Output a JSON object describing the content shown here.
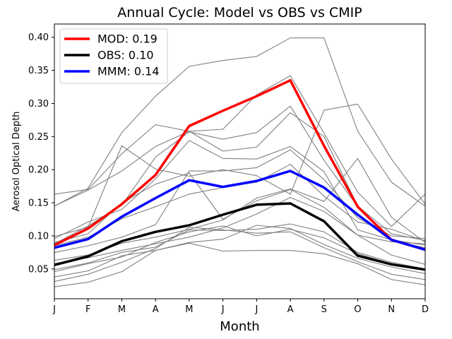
{
  "chart_data": {
    "type": "line",
    "title": "Annual Cycle: Model vs OBS vs CMIP",
    "xlabel": "Month",
    "ylabel": "Aerosol Optical Depth",
    "categories": [
      "J",
      "F",
      "M",
      "A",
      "M",
      "J",
      "J",
      "A",
      "S",
      "O",
      "N",
      "D"
    ],
    "ylim": [
      0.005,
      0.42
    ],
    "yticks": [
      0.05,
      0.1,
      0.15,
      0.2,
      0.25,
      0.3,
      0.35,
      0.4
    ],
    "ytick_labels": [
      "0.05",
      "0.10",
      "0.15",
      "0.20",
      "0.25",
      "0.30",
      "0.35",
      "0.40"
    ],
    "grid": false,
    "legend_position": "top-left",
    "series": [
      {
        "name": "MOD: 0.19",
        "color": "#ff0000",
        "values": [
          0.086,
          0.111,
          0.148,
          0.192,
          0.266,
          0.289,
          0.311,
          0.335,
          0.236,
          0.144,
          0.094,
          0.079
        ]
      },
      {
        "name": "OBS: 0.10",
        "color": "#000000",
        "values": [
          0.056,
          0.069,
          0.092,
          0.106,
          0.116,
          0.132,
          0.147,
          0.149,
          0.122,
          0.07,
          0.057,
          0.049
        ]
      },
      {
        "name": "MMM: 0.14",
        "color": "#0000ff",
        "values": [
          0.082,
          0.095,
          0.129,
          0.157,
          0.184,
          0.174,
          0.183,
          0.198,
          0.173,
          0.132,
          0.094,
          0.079
        ]
      }
    ],
    "cmip_models": [
      {
        "color": "#808080",
        "values": [
          0.145,
          0.172,
          0.256,
          0.311,
          0.356,
          0.365,
          0.371,
          0.399,
          0.399,
          0.258,
          0.181,
          0.145
        ]
      },
      {
        "color": "#808080",
        "values": [
          0.163,
          0.17,
          0.224,
          0.268,
          0.258,
          0.261,
          0.313,
          0.342,
          0.255,
          0.166,
          0.114,
          0.163
        ]
      },
      {
        "color": "#808080",
        "values": [
          0.145,
          0.169,
          0.198,
          0.235,
          0.258,
          0.228,
          0.234,
          0.286,
          0.25,
          0.145,
          0.103,
          0.093
        ]
      },
      {
        "color": "#808080",
        "values": [
          0.099,
          0.113,
          0.236,
          0.201,
          0.19,
          0.2,
          0.191,
          0.163,
          0.29,
          0.299,
          0.216,
          0.148
        ]
      },
      {
        "color": "#808080",
        "values": [
          0.088,
          0.115,
          0.146,
          0.219,
          0.257,
          0.246,
          0.256,
          0.296,
          0.214,
          0.144,
          0.093,
          0.082
        ]
      },
      {
        "color": "#808080",
        "values": [
          0.096,
          0.121,
          0.14,
          0.186,
          0.244,
          0.217,
          0.216,
          0.235,
          0.197,
          0.109,
          0.094,
          0.086
        ]
      },
      {
        "color": "#808080",
        "values": [
          0.09,
          0.103,
          0.15,
          0.178,
          0.195,
          0.125,
          0.153,
          0.17,
          0.143,
          0.101,
          0.091,
          0.088
        ]
      },
      {
        "color": "#808080",
        "values": [
          0.085,
          0.098,
          0.126,
          0.144,
          0.163,
          0.173,
          0.181,
          0.208,
          0.16,
          0.121,
          0.11,
          0.092
        ]
      },
      {
        "color": "#808080",
        "values": [
          0.075,
          0.085,
          0.098,
          0.117,
          0.198,
          0.198,
          0.203,
          0.23,
          0.185,
          0.127,
          0.1,
          0.096
        ]
      },
      {
        "color": "#808080",
        "values": [
          0.063,
          0.071,
          0.089,
          0.098,
          0.11,
          0.124,
          0.157,
          0.171,
          0.152,
          0.217,
          0.128,
          0.09
        ]
      },
      {
        "color": "#808080",
        "values": [
          0.058,
          0.067,
          0.078,
          0.088,
          0.098,
          0.112,
          0.133,
          0.158,
          0.137,
          0.101,
          0.071,
          0.057
        ]
      },
      {
        "color": "#808080",
        "values": [
          0.049,
          0.059,
          0.075,
          0.083,
          0.109,
          0.108,
          0.11,
          0.118,
          0.106,
          0.075,
          0.06,
          0.05
        ]
      },
      {
        "color": "#808080",
        "values": [
          0.046,
          0.058,
          0.068,
          0.09,
          0.106,
          0.115,
          0.1,
          0.11,
          0.097,
          0.073,
          0.058,
          0.048
        ]
      },
      {
        "color": "#808080",
        "values": [
          0.038,
          0.047,
          0.07,
          0.078,
          0.09,
          0.095,
          0.116,
          0.111,
          0.087,
          0.066,
          0.053,
          0.043
        ]
      },
      {
        "color": "#808080",
        "values": [
          0.031,
          0.042,
          0.06,
          0.081,
          0.113,
          0.109,
          0.104,
          0.106,
          0.082,
          0.061,
          0.042,
          0.034
        ]
      },
      {
        "color": "#808080",
        "values": [
          0.023,
          0.03,
          0.046,
          0.078,
          0.089,
          0.077,
          0.078,
          0.078,
          0.073,
          0.058,
          0.034,
          0.026
        ]
      }
    ]
  }
}
